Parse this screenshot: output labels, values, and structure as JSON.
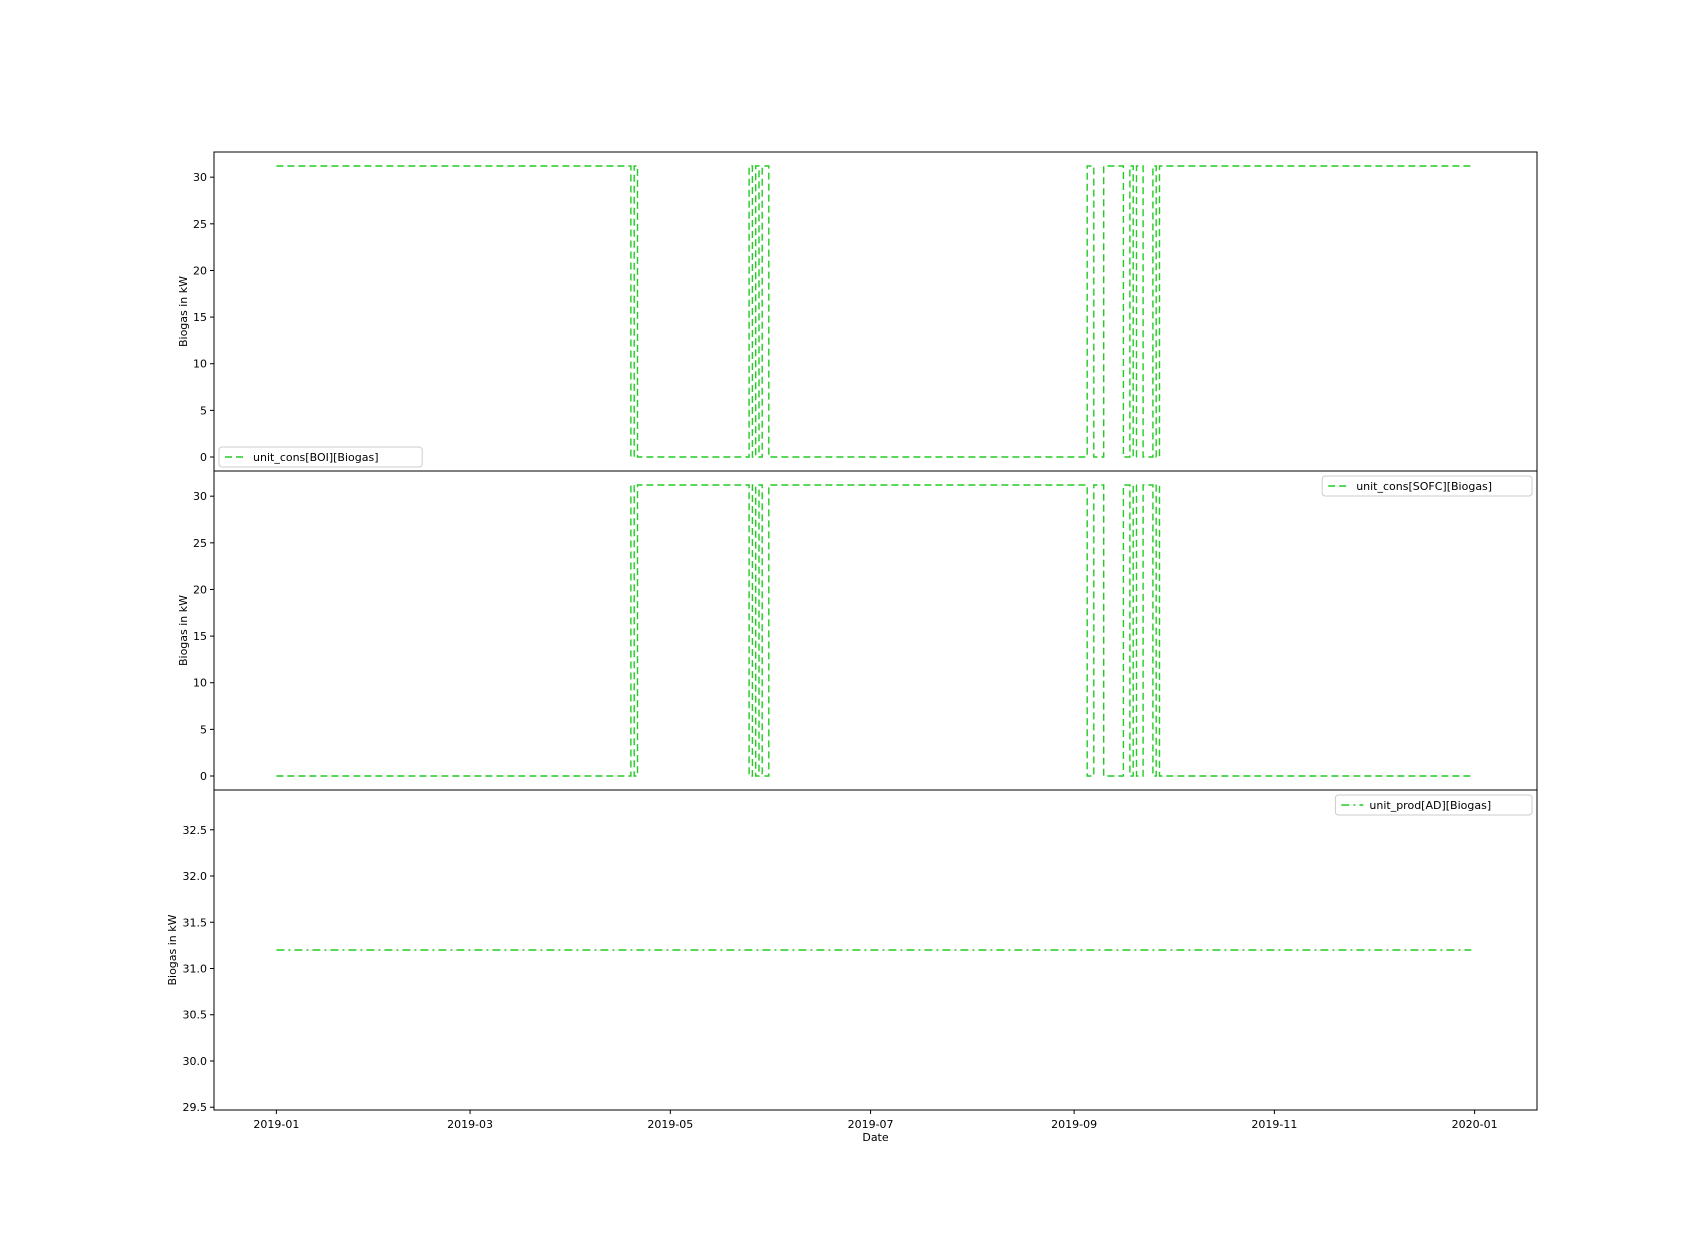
{
  "chart_data": [
    {
      "type": "line",
      "ylabel": "Biogas in kW",
      "xlabel": "",
      "x_type": "date",
      "xlim": [
        "2018-12-13",
        "2020-01-20"
      ],
      "ylim": [
        -1.5,
        32.7
      ],
      "yticks": [
        0,
        5,
        10,
        15,
        20,
        25,
        30
      ],
      "ytick_labels": [
        "0",
        "5",
        "10",
        "15",
        "20",
        "25",
        "30"
      ],
      "xtick_labels_visible": false,
      "legend_position": "lower-left",
      "series": [
        {
          "name": "unit_cons[BOI][Biogas]",
          "color": "#22cc22",
          "linestyle": "dashed",
          "x": [
            "2019-01-01",
            "2019-04-19",
            "2019-04-19",
            "2019-04-20",
            "2019-04-20",
            "2019-04-21",
            "2019-04-21",
            "2019-05-25",
            "2019-05-25",
            "2019-05-26",
            "2019-05-26",
            "2019-05-27",
            "2019-05-27",
            "2019-05-28",
            "2019-05-28",
            "2019-05-29",
            "2019-05-29",
            "2019-05-31",
            "2019-05-31",
            "2019-09-05",
            "2019-09-05",
            "2019-09-07",
            "2019-09-07",
            "2019-09-10",
            "2019-09-10",
            "2019-09-16",
            "2019-09-16",
            "2019-09-18",
            "2019-09-18",
            "2019-09-19",
            "2019-09-19",
            "2019-09-20",
            "2019-09-20",
            "2019-09-22",
            "2019-09-22",
            "2019-09-25",
            "2019-09-25",
            "2019-09-26",
            "2019-09-26",
            "2019-09-27",
            "2019-09-27",
            "2019-09-28",
            "2019-09-28",
            "2019-12-31"
          ],
          "y": [
            31.2,
            31.2,
            0,
            0,
            31.2,
            31.2,
            0,
            0,
            31.2,
            31.2,
            0,
            0,
            31.2,
            31.2,
            0,
            0,
            31.2,
            31.2,
            0,
            0,
            31.2,
            31.2,
            0,
            0,
            31.2,
            31.2,
            0,
            0,
            31.2,
            31.2,
            0,
            0,
            31.2,
            31.2,
            0,
            0,
            31.2,
            31.2,
            0,
            0,
            31.2,
            31.2,
            31.2,
            31.2
          ]
        }
      ]
    },
    {
      "type": "line",
      "ylabel": "Biogas in kW",
      "xlabel": "",
      "x_type": "date",
      "xlim": [
        "2018-12-13",
        "2020-01-20"
      ],
      "ylim": [
        -1.5,
        32.7
      ],
      "yticks": [
        0,
        5,
        10,
        15,
        20,
        25,
        30
      ],
      "ytick_labels": [
        "0",
        "5",
        "10",
        "15",
        "20",
        "25",
        "30"
      ],
      "xtick_labels_visible": false,
      "legend_position": "upper-right",
      "series": [
        {
          "name": "unit_cons[SOFC][Biogas]",
          "color": "#22cc22",
          "linestyle": "dashed",
          "x": [
            "2019-01-01",
            "2019-04-19",
            "2019-04-19",
            "2019-04-20",
            "2019-04-20",
            "2019-04-21",
            "2019-04-21",
            "2019-05-25",
            "2019-05-25",
            "2019-05-26",
            "2019-05-26",
            "2019-05-27",
            "2019-05-27",
            "2019-05-28",
            "2019-05-28",
            "2019-05-29",
            "2019-05-29",
            "2019-05-31",
            "2019-05-31",
            "2019-09-05",
            "2019-09-05",
            "2019-09-07",
            "2019-09-07",
            "2019-09-10",
            "2019-09-10",
            "2019-09-16",
            "2019-09-16",
            "2019-09-18",
            "2019-09-18",
            "2019-09-19",
            "2019-09-19",
            "2019-09-20",
            "2019-09-20",
            "2019-09-22",
            "2019-09-22",
            "2019-09-25",
            "2019-09-25",
            "2019-09-26",
            "2019-09-26",
            "2019-09-27",
            "2019-09-27",
            "2019-09-28",
            "2019-09-28",
            "2019-12-31"
          ],
          "y": [
            0,
            0,
            31.2,
            31.2,
            0,
            0,
            31.2,
            31.2,
            0,
            0,
            31.2,
            31.2,
            0,
            0,
            31.2,
            31.2,
            0,
            0,
            31.2,
            31.2,
            0,
            0,
            31.2,
            31.2,
            0,
            0,
            31.2,
            31.2,
            0,
            0,
            31.2,
            31.2,
            0,
            0,
            31.2,
            31.2,
            0,
            0,
            31.2,
            31.2,
            0,
            0,
            0,
            0
          ]
        }
      ]
    },
    {
      "type": "line",
      "ylabel": "Biogas in kW",
      "xlabel": "Date",
      "x_type": "date",
      "xlim": [
        "2018-12-13",
        "2020-01-20"
      ],
      "ylim": [
        29.47,
        32.93
      ],
      "yticks": [
        29.5,
        30.0,
        30.5,
        31.0,
        31.5,
        32.0,
        32.5
      ],
      "ytick_labels": [
        "29.5",
        "30.0",
        "30.5",
        "31.0",
        "31.5",
        "32.0",
        "32.5"
      ],
      "xticks": [
        "2019-01-01",
        "2019-03-01",
        "2019-05-01",
        "2019-07-01",
        "2019-09-01",
        "2019-11-01",
        "2020-01-01"
      ],
      "xtick_labels": [
        "2019-01",
        "2019-03",
        "2019-05",
        "2019-07",
        "2019-09",
        "2019-11",
        "2020-01"
      ],
      "xtick_labels_visible": true,
      "legend_position": "upper-right",
      "series": [
        {
          "name": "unit_prod[AD][Biogas]",
          "color": "#22cc22",
          "linestyle": "dashdot",
          "x": [
            "2019-01-01",
            "2019-12-31"
          ],
          "y": [
            31.2,
            31.2
          ]
        }
      ]
    }
  ]
}
